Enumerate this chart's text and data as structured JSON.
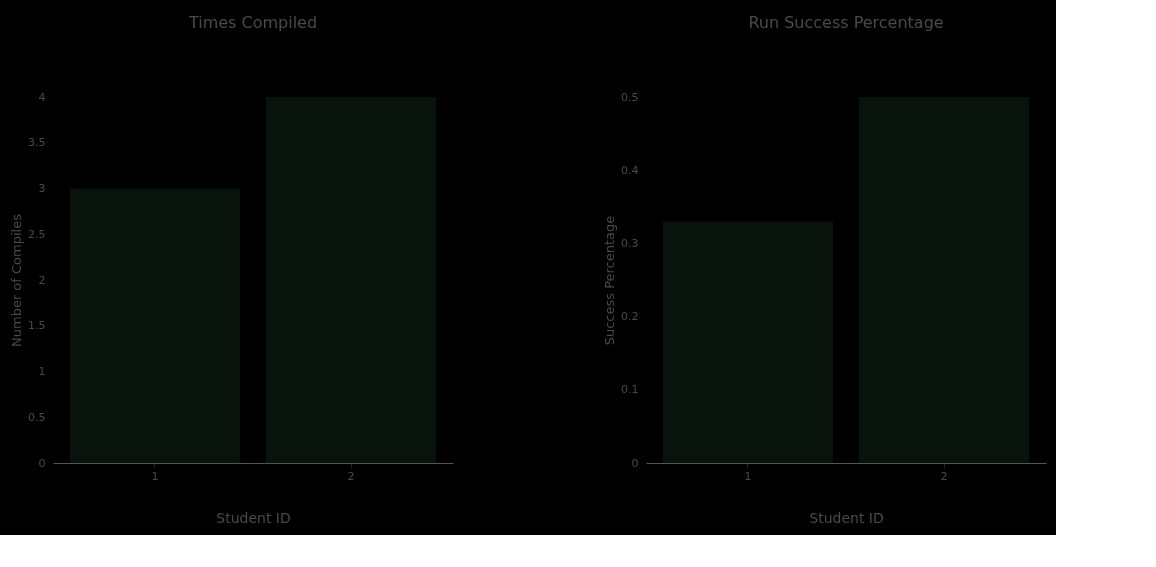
{
  "chart_data": [
    {
      "type": "bar",
      "title": "Times Compiled",
      "xlabel": "Student ID",
      "ylabel": "Number of Compiles",
      "categories": [
        "1",
        "2"
      ],
      "series": [
        {
          "color": "#08130e",
          "values": [
            3,
            4
          ]
        }
      ],
      "ylim": [
        0,
        4
      ],
      "yticks": [
        0,
        0.5,
        1,
        1.5,
        2,
        2.5,
        3,
        3.5,
        4
      ],
      "grid": false
    },
    {
      "type": "bar",
      "title": "Run Success Percentage",
      "xlabel": "Student ID",
      "ylabel": "Success Percentage",
      "categories": [
        "1",
        "2"
      ],
      "series": [
        {
          "color": "#08130e",
          "values": [
            0.33,
            0.5
          ]
        }
      ],
      "ylim": [
        0,
        0.5
      ],
      "yticks": [
        0,
        0.1,
        0.2,
        0.3,
        0.4,
        0.5
      ],
      "grid": false
    }
  ]
}
